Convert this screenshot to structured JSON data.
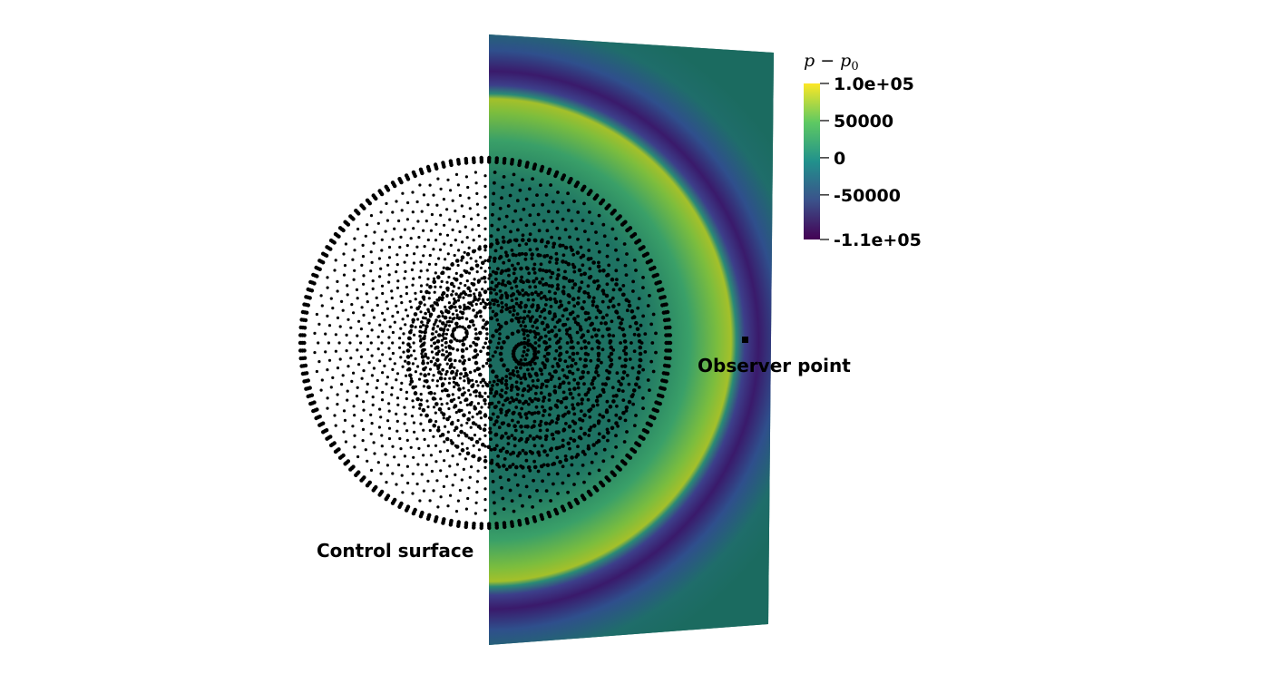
{
  "colorbar": {
    "title": "p − p",
    "title_subscript": "0",
    "ticks": [
      {
        "label": "1.0e+05",
        "value": 100000
      },
      {
        "label": "50000",
        "value": 50000
      },
      {
        "label": "0",
        "value": 0
      },
      {
        "label": "-50000",
        "value": -50000
      },
      {
        "label": "-1.1e+05",
        "value": -110000
      }
    ],
    "range": [
      -110000,
      100000
    ],
    "colormap": "viridis",
    "colors": [
      "#440154",
      "#3b528b",
      "#21918c",
      "#5ec962",
      "#fde725"
    ]
  },
  "labels": {
    "control_surface": "Control surface",
    "observer_point": "Observer point"
  },
  "colors": {
    "background": "#ffffff",
    "plane_base": "#1b6b60",
    "points": "#000000"
  }
}
